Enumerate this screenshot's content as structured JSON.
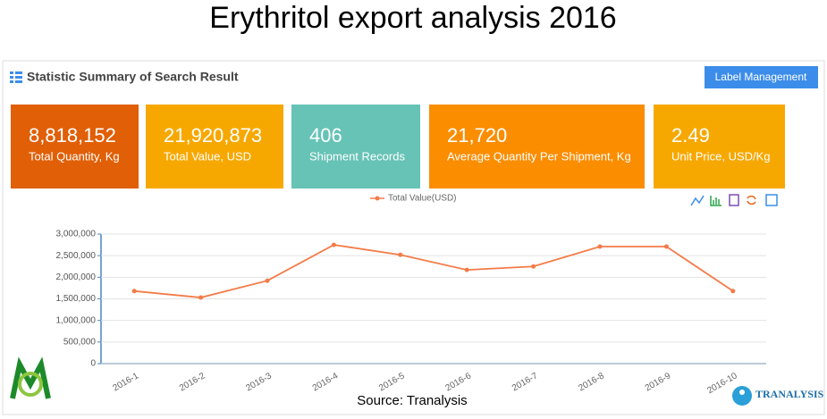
{
  "header": {
    "title": "Erythritol export analysis 2016"
  },
  "panel": {
    "heading": "Statistic Summary of Search Result",
    "button": "Label Management"
  },
  "cards": [
    {
      "value": "8,818,152",
      "label": "Total Quantity, Kg",
      "color": "#e05f07"
    },
    {
      "value": "21,920,873",
      "label": "Total Value, USD",
      "color": "#f7a800"
    },
    {
      "value": "406",
      "label": "Shipment Records",
      "color": "#66c3b6"
    },
    {
      "value": "21,720",
      "label": "Average Quantity Per Shipment, Kg",
      "color": "#fb8d00"
    },
    {
      "value": "2.49",
      "label": "Unit Price, USD/Kg",
      "color": "#f7a800"
    }
  ],
  "chart_data": {
    "type": "line",
    "categories": [
      "2016-1",
      "2016-2",
      "2016-3",
      "2016-4",
      "2016-5",
      "2016-6",
      "2016-7",
      "2016-8",
      "2016-9",
      "2016-10"
    ],
    "series": [
      {
        "name": "Total Value(USD)",
        "color": "#f47b48",
        "values": [
          1680000,
          1530000,
          1920000,
          2750000,
          2520000,
          2170000,
          2250000,
          2710000,
          2710000,
          1680000
        ]
      }
    ],
    "ylim": [
      0,
      3000000
    ],
    "yticks": [
      0,
      {
        "value": 500000,
        "label": "500,000"
      },
      {
        "value": 1000000,
        "label": "1,000,000"
      },
      {
        "value": 1500000,
        "label": "1,500,000"
      },
      {
        "value": 2000000,
        "label": "2,000,000"
      },
      {
        "value": 2500000,
        "label": "2,500,000"
      },
      {
        "value": 3000000,
        "label": "3,000,000"
      }
    ],
    "grid": true,
    "legend": "top"
  },
  "footer": {
    "source": "Source: Tranalysis",
    "logo": "TRANALYSIS"
  }
}
